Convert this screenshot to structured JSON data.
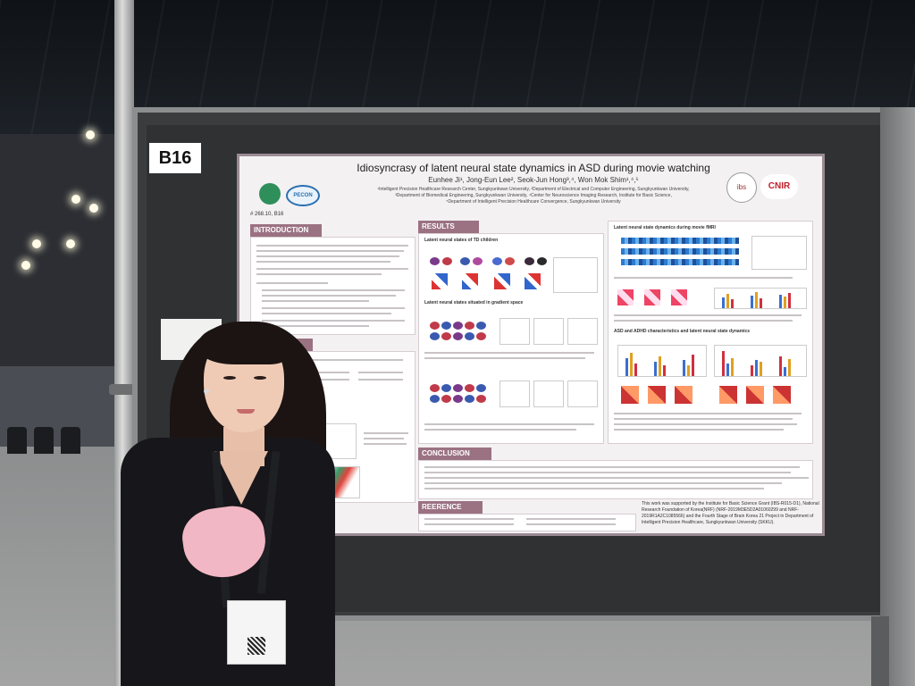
{
  "scene": {
    "description_tags": [
      "poster-session",
      "conference-hall",
      "presenter"
    ],
    "board_number": "B16"
  },
  "poster": {
    "title": "Idiosyncrasy of latent neural state dynamics in ASD during movie watching",
    "authors": "Eunhee Ji¹, Jong-Eun Lee², Seok-Jun Hong³,⁴, Won Mok Shim¹,⁴,⁵",
    "affiliations": "¹Intelligent Precision Healthcare Research Center, Sungkyunkwan University, ²Department of Electrical and Computer Engineering, Sungkyunkwan University,\n³Department of Biomedical Engineering, Sungkyunkwan University, ⁴Center for Neuroscience Imaging Research, Institute for Basic Science,\n⁵Department of Intelligent Precision Healthcare Convergence, Sungkyunkwan University",
    "poster_id": "# 268.10, B16",
    "logos": [
      "PECON",
      "ibs",
      "CNIR"
    ],
    "sections": {
      "introduction": "INTRODUCTION",
      "results": "RESULTS",
      "methods": "S",
      "conclusion": "CONCLUSION",
      "references": "REERENCE"
    },
    "results_subheads": {
      "a": "Latent neural states of TD children",
      "b": "Latent neural states situated in gradient space",
      "c": "Latent neural state dynamics during movie fMRI",
      "d": "ASD and ADHD characteristics and latent neural state dynamics"
    },
    "group_labels": [
      "TD",
      "ASD",
      "ADHD"
    ],
    "ack": "This work was supported by the Institute for Basic Science Grant (IBS-R015-D1), National Research Foundation of Korea(NRF) (NRF-2019M3E5D2A01060299 and NRF-2019R1A2C1085566) and the Fourth Stage of Brain Korea 21 Project in Department of Intelligent Precision Healthcare, Sungkyunkwan University (SKKU)."
  },
  "colors": {
    "poster_accent": "#9b7282",
    "board": "#3a3c3e",
    "mask": "#f2b7c4"
  }
}
